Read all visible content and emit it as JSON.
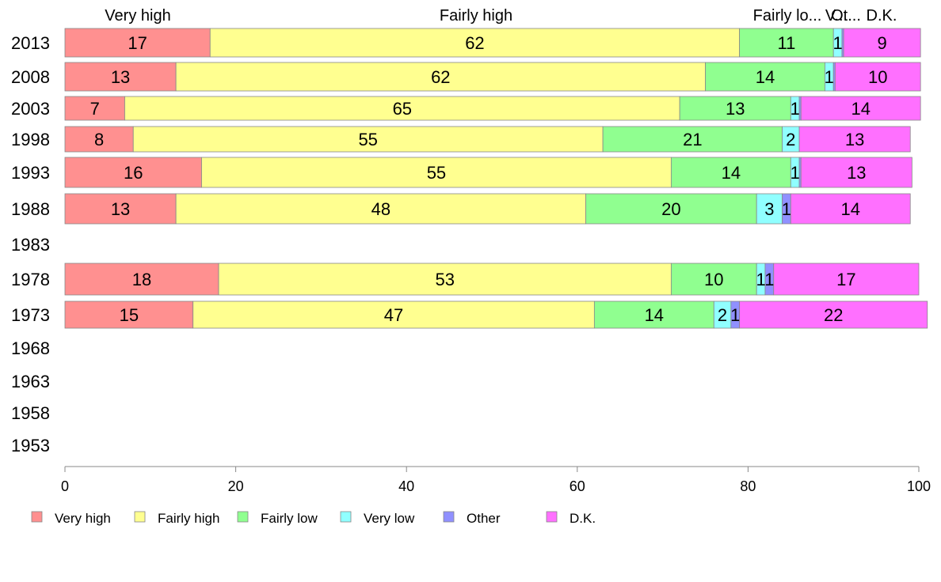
{
  "chart_data": {
    "type": "bar",
    "orientation": "horizontal",
    "stacked": true,
    "xlim": [
      0,
      100
    ],
    "x_ticks": [
      "0",
      "20",
      "40",
      "60",
      "80",
      "100"
    ],
    "categories": [
      "2013",
      "2008",
      "2003",
      "1998",
      "1993",
      "1988",
      "1983",
      "1978",
      "1973",
      "1968",
      "1963",
      "1958",
      "1953"
    ],
    "top_labels": [
      "Very high",
      "Fairly high",
      "Fairly lo...",
      "V...",
      "Ot...",
      "D.K."
    ],
    "legend_position": "bottom",
    "series": [
      {
        "name": "Very high",
        "color": "#ff9090",
        "values": [
          17,
          13,
          7,
          8,
          16,
          13,
          null,
          18,
          15,
          null,
          null,
          null,
          null
        ]
      },
      {
        "name": "Fairly high",
        "color": "#ffff90",
        "values": [
          62,
          62,
          65,
          55,
          55,
          48,
          null,
          53,
          47,
          null,
          null,
          null,
          null
        ]
      },
      {
        "name": "Fairly low",
        "color": "#90ff90",
        "values": [
          11,
          14,
          13,
          21,
          14,
          20,
          null,
          10,
          14,
          null,
          null,
          null,
          null
        ]
      },
      {
        "name": "Very low",
        "color": "#90ffff",
        "values": [
          1,
          1,
          1,
          2,
          1,
          3,
          null,
          1,
          2,
          null,
          null,
          null,
          null
        ]
      },
      {
        "name": "Other",
        "color": "#9090ff",
        "values": [
          0.2,
          0.2,
          0.2,
          0,
          0.2,
          1,
          null,
          1,
          1,
          null,
          null,
          null,
          null
        ]
      },
      {
        "name": "D.K.",
        "color": "#ff70ff",
        "values": [
          9,
          10,
          14,
          13,
          13,
          14,
          null,
          17,
          22,
          null,
          null,
          null,
          null
        ]
      }
    ],
    "label_hidden_values": [
      0.2
    ],
    "grid": false
  }
}
